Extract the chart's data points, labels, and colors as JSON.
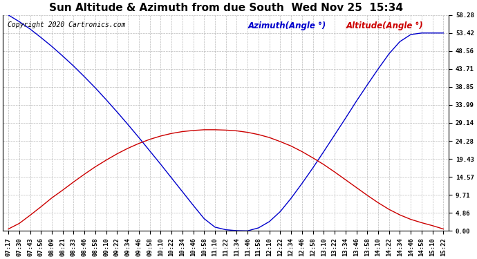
{
  "title": "Sun Altitude & Azimuth from due South  Wed Nov 25  15:34",
  "copyright": "Copyright 2020 Cartronics.com",
  "legend_azimuth": "Azimuth(Angle °)",
  "legend_altitude": "Altitude(Angle °)",
  "azimuth_color": "#0000cc",
  "altitude_color": "#cc0000",
  "background_color": "#ffffff",
  "grid_color": "#aaaaaa",
  "yticks": [
    0.0,
    4.86,
    9.71,
    14.57,
    19.43,
    24.28,
    29.14,
    33.99,
    38.85,
    43.71,
    48.56,
    53.42,
    58.28
  ],
  "ymin": 0.0,
  "ymax": 58.28,
  "x_labels": [
    "07:17",
    "07:30",
    "07:43",
    "07:56",
    "08:09",
    "08:21",
    "08:33",
    "08:46",
    "08:58",
    "09:10",
    "09:22",
    "09:34",
    "09:46",
    "09:58",
    "10:10",
    "10:22",
    "10:34",
    "10:46",
    "10:58",
    "11:10",
    "11:22",
    "11:34",
    "11:46",
    "11:58",
    "12:10",
    "12:22",
    "12:34",
    "12:46",
    "12:58",
    "13:10",
    "13:22",
    "13:34",
    "13:46",
    "13:58",
    "14:10",
    "14:22",
    "14:34",
    "14:46",
    "14:58",
    "15:10",
    "15:22"
  ],
  "title_fontsize": 11,
  "copyright_fontsize": 7,
  "tick_fontsize": 6.5,
  "legend_fontsize": 8.5,
  "azimuth_data": [
    58.28,
    56.5,
    54.5,
    52.2,
    49.8,
    47.2,
    44.5,
    41.6,
    38.6,
    35.4,
    32.1,
    28.7,
    25.2,
    21.6,
    18.0,
    14.3,
    10.6,
    6.9,
    3.3,
    1.0,
    0.3,
    0.05,
    0.0,
    0.8,
    2.5,
    5.2,
    8.8,
    12.8,
    17.0,
    21.4,
    25.9,
    30.4,
    35.0,
    39.4,
    43.7,
    47.8,
    51.1,
    53.0,
    53.42,
    53.42,
    53.42
  ],
  "altitude_data": [
    0.5,
    2.0,
    4.2,
    6.5,
    8.9,
    11.0,
    13.2,
    15.3,
    17.3,
    19.1,
    20.8,
    22.3,
    23.6,
    24.7,
    25.6,
    26.3,
    26.8,
    27.1,
    27.3,
    27.3,
    27.2,
    27.0,
    26.6,
    26.0,
    25.2,
    24.1,
    22.9,
    21.4,
    19.7,
    17.9,
    15.9,
    13.8,
    11.7,
    9.6,
    7.6,
    5.8,
    4.3,
    3.1,
    2.2,
    1.4,
    0.5
  ]
}
